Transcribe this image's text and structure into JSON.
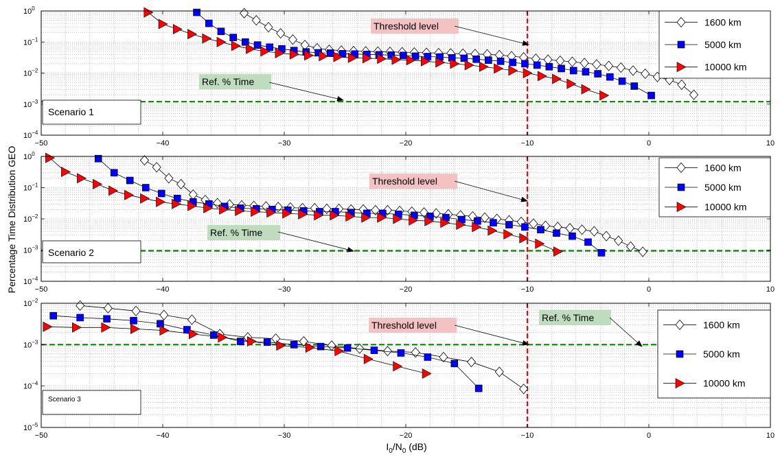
{
  "ylabel": "Percentage Time Distribution GEO",
  "xlabel_parts": {
    "i": "I",
    "sub1": "0",
    "slash": "/N",
    "sub2": "0",
    "unit": " (dB)"
  },
  "colors": {
    "s1600": "#ffffff",
    "s5000": "#0000ff",
    "s10000": "#ff0000",
    "threshold": "#ff0000",
    "ref": "#008800",
    "threshold_box": "#f4c2c2",
    "ref_box": "#bfdcbf"
  },
  "chart_data": [
    {
      "type": "line",
      "title": "",
      "scenario_label": "Scenario 1",
      "xlim": [
        -50,
        10
      ],
      "ylim_exp": [
        -4,
        0
      ],
      "y_scale": "log",
      "x_ticks": [
        "−50",
        "−40",
        "−30",
        "−20",
        "−10",
        "0",
        "10"
      ],
      "y_ticks": [
        "10",
        "10",
        "10",
        "10",
        "10"
      ],
      "y_tick_exps": [
        "−4",
        "−3",
        "−2",
        "−1",
        "0"
      ],
      "grid": true,
      "legend_position": "top-right",
      "threshold_x": -10,
      "ref_y": 0.0012,
      "threshold_text": "Threshold level",
      "ref_text": "Ref. % Time",
      "series": [
        {
          "name": "1600 km",
          "marker": "diamond",
          "x": [
            -33.3,
            -32.3,
            -31.3,
            -30.3,
            -29.3,
            -28.3,
            -27.3,
            -26.3,
            -25.3,
            -24.3,
            -23.3,
            -22.3,
            -21.3,
            -20.3,
            -19.3,
            -18.3,
            -17.3,
            -16.3,
            -15.3,
            -14.3,
            -13.3,
            -12.3,
            -11.3,
            -10.3,
            -9.3,
            -8.3,
            -7.3,
            -6.3,
            -5.3,
            -4.3,
            -3.3,
            -2.3,
            -1.3,
            -0.3,
            0.7,
            1.7,
            2.7,
            3.7
          ],
          "y": [
            0.85,
            0.5,
            0.3,
            0.19,
            0.12,
            0.08,
            0.063,
            0.056,
            0.053,
            0.051,
            0.05,
            0.049,
            0.048,
            0.047,
            0.046,
            0.045,
            0.044,
            0.043,
            0.042,
            0.041,
            0.04,
            0.038,
            0.035,
            0.032,
            0.029,
            0.027,
            0.025,
            0.023,
            0.021,
            0.019,
            0.017,
            0.015,
            0.012,
            0.0095,
            0.0075,
            0.006,
            0.0042,
            0.002
          ]
        },
        {
          "name": "5000 km",
          "marker": "square",
          "x": [
            -37.2,
            -36.2,
            -35.2,
            -34.2,
            -33.2,
            -32.2,
            -31.2,
            -30.2,
            -29.2,
            -28.2,
            -27.2,
            -26.2,
            -25.2,
            -24.2,
            -23.2,
            -22.2,
            -21.2,
            -20.2,
            -19.2,
            -18.2,
            -17.2,
            -16.2,
            -15.2,
            -14.2,
            -13.2,
            -12.2,
            -11.2,
            -10.2,
            -9.2,
            -8.2,
            -7.2,
            -6.2,
            -5.2,
            -4.2,
            -3.2,
            -2.2,
            -1.2,
            0.2
          ],
          "y": [
            0.9,
            0.4,
            0.22,
            0.14,
            0.1,
            0.08,
            0.068,
            0.06,
            0.053,
            0.048,
            0.045,
            0.044,
            0.042,
            0.041,
            0.04,
            0.039,
            0.038,
            0.037,
            0.035,
            0.034,
            0.033,
            0.031,
            0.03,
            0.028,
            0.026,
            0.024,
            0.022,
            0.02,
            0.018,
            0.016,
            0.014,
            0.012,
            0.011,
            0.0095,
            0.0075,
            0.0055,
            0.0038,
            0.0019
          ]
        },
        {
          "name": "10000 km",
          "marker": "triangle",
          "x": [
            -41.2,
            -40,
            -38.8,
            -37.6,
            -36.4,
            -35.2,
            -34,
            -32.8,
            -31.6,
            -30.4,
            -29.2,
            -28,
            -26.8,
            -25.6,
            -24.4,
            -23.2,
            -22,
            -20.8,
            -19.6,
            -18.4,
            -17.2,
            -16,
            -14.8,
            -13.6,
            -12.4,
            -11.2,
            -10,
            -8.8,
            -7.6,
            -6.4,
            -5.2,
            -3.7
          ],
          "y": [
            0.9,
            0.38,
            0.26,
            0.18,
            0.13,
            0.1,
            0.075,
            0.06,
            0.05,
            0.044,
            0.04,
            0.037,
            0.035,
            0.033,
            0.031,
            0.03,
            0.029,
            0.027,
            0.026,
            0.024,
            0.022,
            0.02,
            0.018,
            0.016,
            0.014,
            0.012,
            0.01,
            0.008,
            0.0065,
            0.0045,
            0.003,
            0.0019
          ]
        }
      ]
    },
    {
      "type": "line",
      "title": "",
      "scenario_label": "Scenario 2",
      "xlim": [
        -50,
        10
      ],
      "ylim_exp": [
        -4,
        0
      ],
      "y_scale": "log",
      "x_ticks": [
        "−50",
        "−40",
        "−30",
        "−20",
        "−10",
        "0",
        "10"
      ],
      "y_ticks": [
        "10",
        "10",
        "10",
        "10",
        "10"
      ],
      "y_tick_exps": [
        "−4",
        "−3",
        "−2",
        "−1",
        "0"
      ],
      "grid": true,
      "legend_position": "top-right",
      "threshold_x": -10,
      "ref_y": 0.00095,
      "threshold_text": "Threshold level",
      "ref_text": "Ref. % Time",
      "series": [
        {
          "name": "1600 km",
          "marker": "diamond",
          "x": [
            -41.5,
            -40.5,
            -39.5,
            -38.5,
            -37.5,
            -36.5,
            -35.5,
            -34.5,
            -33.5,
            -32.5,
            -31.5,
            -30.5,
            -29.5,
            -28.5,
            -27.5,
            -26.5,
            -25.5,
            -24.5,
            -23.5,
            -22.5,
            -21.5,
            -20.5,
            -19.5,
            -18.5,
            -17.5,
            -16.5,
            -15.5,
            -14.5,
            -13.5,
            -12.5,
            -11.5,
            -10.5,
            -9.5,
            -8.5,
            -7.5,
            -6.5,
            -5.5,
            -4.5,
            -3.5,
            -2.5,
            -1.5,
            -0.5
          ],
          "y": [
            0.75,
            0.45,
            0.2,
            0.13,
            0.06,
            0.04,
            0.032,
            0.029,
            0.027,
            0.026,
            0.025,
            0.024,
            0.023,
            0.022,
            0.022,
            0.021,
            0.021,
            0.02,
            0.02,
            0.019,
            0.019,
            0.018,
            0.017,
            0.016,
            0.015,
            0.014,
            0.013,
            0.012,
            0.011,
            0.01,
            0.009,
            0.008,
            0.007,
            0.006,
            0.0055,
            0.005,
            0.0045,
            0.004,
            0.0028,
            0.002,
            0.0013,
            0.00088
          ]
        },
        {
          "name": "5000 km",
          "marker": "square",
          "x": [
            -45.3,
            -44,
            -42.7,
            -41.4,
            -40.1,
            -38.8,
            -37.5,
            -36.2,
            -34.9,
            -33.6,
            -32.3,
            -31,
            -29.7,
            -28.4,
            -27.1,
            -25.8,
            -24.5,
            -23.2,
            -21.9,
            -20.6,
            -19.3,
            -18,
            -16.7,
            -15.4,
            -14.1,
            -12.8,
            -11.5,
            -10.2,
            -8.9,
            -7.6,
            -6.3,
            -5,
            -3.9
          ],
          "y": [
            0.85,
            0.3,
            0.17,
            0.1,
            0.065,
            0.045,
            0.035,
            0.03,
            0.025,
            0.022,
            0.021,
            0.02,
            0.019,
            0.018,
            0.017,
            0.017,
            0.016,
            0.015,
            0.015,
            0.014,
            0.013,
            0.012,
            0.011,
            0.0095,
            0.0085,
            0.0075,
            0.0065,
            0.0055,
            0.0045,
            0.0035,
            0.0028,
            0.0018,
            0.00082
          ]
        },
        {
          "name": "10000 km",
          "marker": "triangle",
          "x": [
            -49.3,
            -48,
            -46.7,
            -45.4,
            -44.1,
            -42.8,
            -41.5,
            -40.2,
            -38.9,
            -37.6,
            -36.3,
            -35,
            -33.7,
            -32.4,
            -31.1,
            -29.8,
            -28.5,
            -27.2,
            -25.9,
            -24.6,
            -23.3,
            -22,
            -20.7,
            -19.4,
            -18.1,
            -16.8,
            -15.5,
            -14.2,
            -12.9,
            -11.6,
            -10.3,
            -9,
            -7.5
          ],
          "y": [
            0.9,
            0.32,
            0.2,
            0.13,
            0.08,
            0.058,
            0.045,
            0.035,
            0.03,
            0.026,
            0.022,
            0.02,
            0.018,
            0.017,
            0.016,
            0.015,
            0.014,
            0.013,
            0.013,
            0.012,
            0.011,
            0.011,
            0.01,
            0.009,
            0.0085,
            0.0075,
            0.0065,
            0.0055,
            0.0042,
            0.0032,
            0.0024,
            0.0016,
            0.0009
          ]
        }
      ]
    },
    {
      "type": "line",
      "title": "",
      "scenario_label": "Scenario 3",
      "xlim": [
        -50,
        10
      ],
      "ylim_exp": [
        -5,
        -2
      ],
      "y_scale": "log",
      "x_ticks": [
        "−50",
        "−40",
        "−30",
        "−20",
        "−10",
        "0",
        "10"
      ],
      "y_ticks": [
        "10",
        "10",
        "10",
        "10"
      ],
      "y_tick_exps": [
        "−5",
        "−4",
        "−3",
        "−2"
      ],
      "grid": true,
      "legend_position": "top-right",
      "threshold_x": -10,
      "ref_y": 0.001,
      "threshold_text": "Threshold level",
      "ref_text": "Ref. % Time",
      "series": [
        {
          "name": "1600 km",
          "marker": "diamond",
          "x": [
            -46.8,
            -44.5,
            -42.2,
            -39.9,
            -37.6,
            -35.3,
            -33,
            -30.7,
            -28.4,
            -26.1,
            -23.8,
            -21.5,
            -19.2,
            -16.9,
            -14.6,
            -12.3,
            -10.3
          ],
          "y": [
            0.0088,
            0.0076,
            0.0065,
            0.0052,
            0.004,
            0.0018,
            0.0015,
            0.0014,
            0.0012,
            0.00095,
            0.0008,
            0.0007,
            0.00065,
            0.0005,
            0.00038,
            0.00022,
            8.5e-05
          ]
        },
        {
          "name": "5000 km",
          "marker": "square",
          "x": [
            -49,
            -46.8,
            -44.6,
            -42.4,
            -40.2,
            -38,
            -35.8,
            -33.6,
            -31.4,
            -29.2,
            -27,
            -24.8,
            -22.6,
            -20.4,
            -18.2,
            -16,
            -14
          ],
          "y": [
            0.005,
            0.0045,
            0.0042,
            0.0038,
            0.0032,
            0.0023,
            0.0017,
            0.0012,
            0.00115,
            0.001,
            0.0009,
            0.00083,
            0.00073,
            0.00063,
            0.0005,
            0.00035,
            8.8e-05
          ]
        },
        {
          "name": "10000 km",
          "marker": "triangle",
          "x": [
            -49.5,
            -47.1,
            -44.7,
            -42.3,
            -39.9,
            -37.5,
            -35.1,
            -32.7,
            -30.3,
            -27.9,
            -25.5,
            -23.1,
            -20.7,
            -18.3
          ],
          "y": [
            0.0027,
            0.0026,
            0.0026,
            0.0024,
            0.0022,
            0.0018,
            0.0015,
            0.0012,
            0.00095,
            0.00085,
            0.0007,
            0.00045,
            0.0003,
            0.0002
          ]
        }
      ]
    }
  ]
}
